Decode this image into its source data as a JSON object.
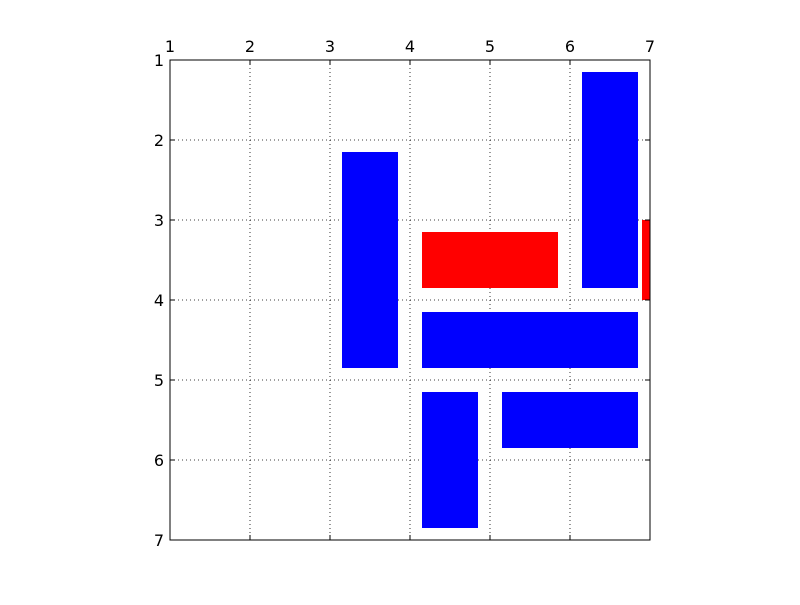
{
  "chart_data": {
    "type": "rectangles",
    "title": "",
    "xlabel": "",
    "ylabel": "",
    "xlim": [
      1,
      7
    ],
    "ylim": [
      7,
      1
    ],
    "y_inverted": true,
    "x_axis_position": "top",
    "xticks": [
      1,
      2,
      3,
      4,
      5,
      6,
      7
    ],
    "yticks": [
      1,
      2,
      3,
      4,
      5,
      6,
      7
    ],
    "grid": true,
    "grid_style": "dotted",
    "colors": {
      "blue": "#0000ff",
      "red": "#ff0000",
      "frame": "#000000",
      "grid": "#000000"
    },
    "rects": [
      {
        "x0": 6.15,
        "x1": 6.85,
        "y0": 1.15,
        "y1": 3.85,
        "color": "blue"
      },
      {
        "x0": 3.15,
        "x1": 3.85,
        "y0": 2.15,
        "y1": 4.85,
        "color": "blue"
      },
      {
        "x0": 4.15,
        "x1": 5.85,
        "y0": 3.15,
        "y1": 3.85,
        "color": "red"
      },
      {
        "x0": 6.9,
        "x1": 7.0,
        "y0": 3.0,
        "y1": 4.0,
        "color": "red"
      },
      {
        "x0": 4.15,
        "x1": 6.85,
        "y0": 4.15,
        "y1": 4.85,
        "color": "blue"
      },
      {
        "x0": 4.15,
        "x1": 4.85,
        "y0": 5.15,
        "y1": 6.85,
        "color": "blue"
      },
      {
        "x0": 5.15,
        "x1": 6.85,
        "y0": 5.15,
        "y1": 5.85,
        "color": "blue"
      }
    ]
  }
}
